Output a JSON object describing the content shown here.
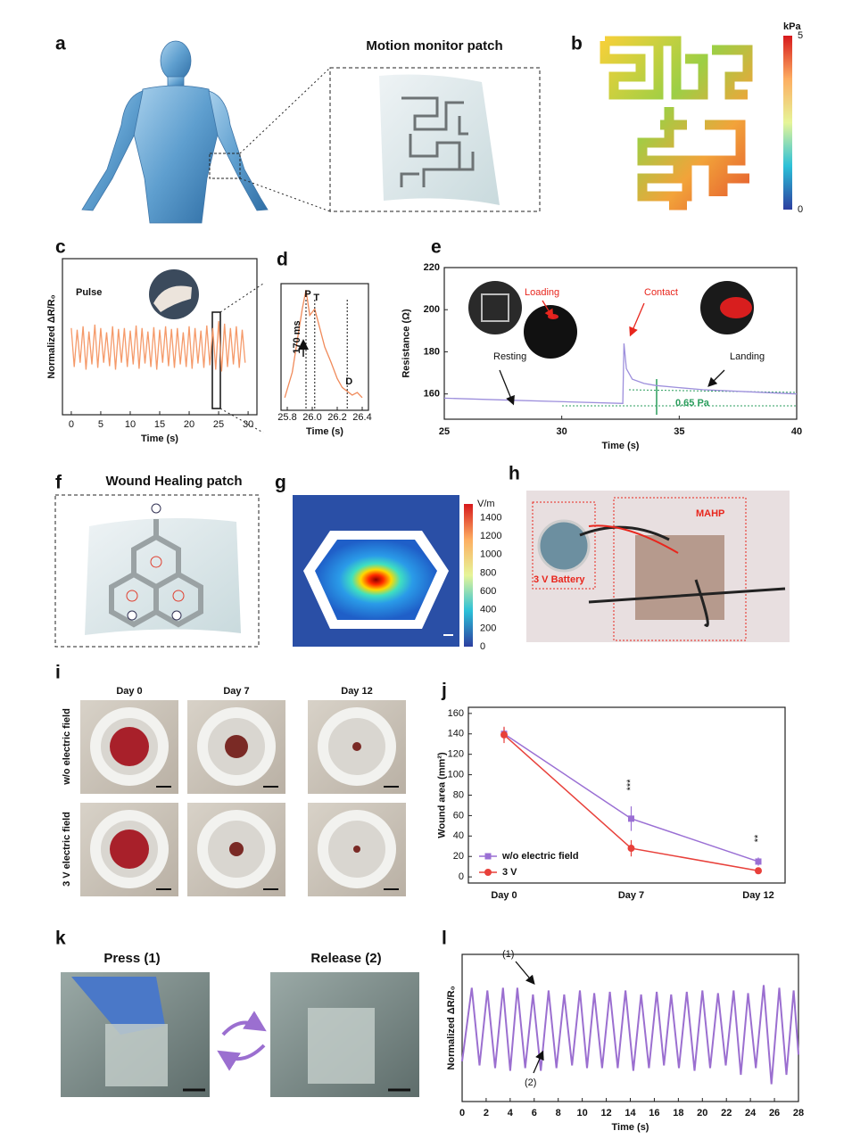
{
  "panel_labels": [
    "a",
    "b",
    "c",
    "d",
    "e",
    "f",
    "g",
    "h",
    "i",
    "j",
    "k",
    "l"
  ],
  "a": {
    "title": "Motion monitor patch"
  },
  "b": {
    "colorbar": {
      "unit": "kPa",
      "lim": [
        0,
        5
      ],
      "ticks": [
        0,
        5
      ]
    }
  },
  "f": {
    "title": "Wound Healing patch"
  },
  "g": {
    "colorbar": {
      "unit": "V/m",
      "lim": [
        0,
        1550
      ],
      "ticks": [
        0,
        200,
        400,
        600,
        800,
        1000,
        1200,
        1400
      ]
    }
  },
  "h": {
    "labels": [
      "MAHP",
      "3 V Battery"
    ]
  },
  "i": {
    "columns": [
      "Day 0",
      "Day 7",
      "Day 12"
    ],
    "rows": [
      "w/o electric field",
      "3 V electric field"
    ]
  },
  "k": {
    "labels": [
      "Press (1)",
      "Release (2)"
    ]
  },
  "chart_data": [
    {
      "type": "line",
      "panel": "c",
      "annotations": [
        "Pulse"
      ],
      "xlabel": "Time (s)",
      "ylabel": "Normalized ΔR/R₀",
      "xlim": [
        -1.5,
        31.5
      ],
      "xticks": [
        0,
        5,
        10,
        15,
        20,
        25,
        30
      ],
      "ylim": [
        -0.3,
        1.5
      ],
      "color": "#f59a6a",
      "x": [
        0,
        0.5,
        1,
        1.5,
        2,
        2.5,
        3,
        3.5,
        4,
        4.5,
        5,
        5.5,
        6,
        6.5,
        7,
        7.5,
        8,
        8.5,
        9,
        9.5,
        10,
        10.5,
        11,
        11.5,
        12,
        12.5,
        13,
        13.5,
        14,
        14.5,
        15,
        15.5,
        16,
        16.5,
        17,
        17.5,
        18,
        18.5,
        19,
        19.5,
        20,
        20.5,
        21,
        21.5,
        22,
        22.5,
        23,
        23.5,
        24,
        24.5,
        25,
        25.5,
        26,
        26.5,
        27,
        27.5,
        28,
        28.5,
        29,
        29.5
      ],
      "values": [
        0.7,
        0.25,
        0.68,
        0.3,
        0.72,
        0.22,
        0.66,
        0.28,
        0.74,
        0.24,
        0.7,
        0.3,
        0.65,
        0.26,
        0.72,
        0.22,
        0.69,
        0.3,
        0.7,
        0.25,
        0.67,
        0.28,
        0.73,
        0.23,
        0.7,
        0.29,
        0.66,
        0.25,
        0.71,
        0.22,
        0.68,
        0.3,
        0.72,
        0.26,
        0.69,
        0.24,
        0.7,
        0.28,
        0.65,
        0.25,
        0.72,
        0.23,
        0.7,
        0.29,
        0.67,
        0.24,
        0.73,
        0.27,
        0.7,
        0.22,
        0.78,
        0.2,
        0.75,
        0.25,
        0.7,
        0.28,
        0.72,
        0.24,
        0.68,
        0.3
      ]
    },
    {
      "type": "line",
      "panel": "d",
      "annotations": [
        "170 ms"
      ],
      "xlabel": "Time (s)",
      "xlim": [
        25.75,
        26.45
      ],
      "xticks": [
        25.8,
        {
          "value": 26,
          "label": "26.0"
        },
        26.2,
        26.4
      ],
      "ylim": [
        0,
        1
      ],
      "color": "#f08a5a",
      "markers": [
        {
          "label": "P",
          "x": 25.95
        },
        {
          "label": "T",
          "x": 26.02
        },
        {
          "label": "D",
          "x": 26.28
        }
      ],
      "x": [
        25.78,
        25.84,
        25.88,
        25.92,
        25.95,
        25.98,
        26.02,
        26.06,
        26.1,
        26.15,
        26.2,
        26.24,
        26.28,
        26.32,
        26.36,
        26.4
      ],
      "values": [
        0.1,
        0.3,
        0.55,
        0.8,
        0.95,
        0.75,
        0.8,
        0.65,
        0.5,
        0.38,
        0.25,
        0.18,
        0.15,
        0.12,
        0.14,
        0.1
      ]
    },
    {
      "type": "line",
      "panel": "e",
      "annotations": [
        "Resting",
        "Loading",
        "Contact",
        "Landing",
        "0.65 Pa"
      ],
      "xlabel": "Time (s)",
      "ylabel": "Resistance (Ω)",
      "xlim": [
        25,
        40
      ],
      "xticks": [
        25,
        30,
        35,
        40
      ],
      "ylim": [
        148,
        220
      ],
      "yticks": [
        160,
        180,
        200,
        220
      ],
      "color": "#9d8fdc",
      "x": [
        25,
        28,
        32.6,
        32.65,
        32.75,
        33,
        33.5,
        34,
        35,
        36,
        38,
        40
      ],
      "values": [
        158,
        157,
        155.5,
        184,
        172,
        167,
        165,
        164,
        163,
        162,
        161,
        160
      ]
    },
    {
      "type": "errorline",
      "panel": "j",
      "annotations": [
        "***",
        "**"
      ],
      "ylabel": "Wound area (mm²)",
      "categories": [
        "Day 0",
        "Day 7",
        "Day 12"
      ],
      "ylim": [
        -6,
        166
      ],
      "yticks": [
        0,
        20,
        40,
        60,
        80,
        100,
        120,
        140,
        160
      ],
      "legend": "lower left",
      "series": [
        {
          "name": "w/o electric field",
          "color": "#9a6fd4",
          "marker": "square",
          "values": [
            140,
            57,
            15
          ],
          "errors": [
            6,
            12,
            4
          ]
        },
        {
          "name": "3 V",
          "color": "#e8403a",
          "marker": "circle",
          "values": [
            139,
            28,
            6
          ],
          "errors": [
            8,
            8,
            2
          ]
        }
      ]
    },
    {
      "type": "line",
      "panel": "l",
      "annotations": [
        "(1)",
        "(2)"
      ],
      "xlabel": "Time (s)",
      "ylabel": "Normalized ΔR/R₀",
      "xlim": [
        0,
        28
      ],
      "xticks": [
        0,
        2,
        4,
        6,
        8,
        10,
        12,
        14,
        16,
        18,
        20,
        22,
        24,
        26,
        28
      ],
      "ylim": [
        -0.05,
        1.05
      ],
      "color": "#9b6fd0",
      "x": [
        0,
        0.8,
        1.45,
        2.1,
        2.75,
        3.4,
        4.0,
        4.6,
        5.25,
        5.9,
        6.55,
        7.2,
        7.85,
        8.5,
        9.15,
        9.8,
        10.4,
        11.0,
        11.65,
        12.3,
        12.95,
        13.6,
        14.25,
        14.9,
        15.55,
        16.2,
        16.8,
        17.4,
        18.05,
        18.7,
        19.35,
        20.0,
        20.65,
        21.3,
        21.95,
        22.6,
        23.2,
        23.8,
        24.45,
        25.1,
        25.75,
        26.4,
        27.0,
        27.6,
        28
      ],
      "values": [
        0.25,
        0.8,
        0.22,
        0.78,
        0.2,
        0.8,
        0.18,
        0.8,
        0.2,
        0.75,
        0.18,
        0.78,
        0.2,
        0.75,
        0.22,
        0.78,
        0.2,
        0.76,
        0.2,
        0.77,
        0.2,
        0.78,
        0.18,
        0.75,
        0.2,
        0.77,
        0.22,
        0.75,
        0.2,
        0.77,
        0.18,
        0.78,
        0.2,
        0.76,
        0.22,
        0.78,
        0.15,
        0.76,
        0.2,
        0.82,
        0.08,
        0.8,
        0.15,
        0.78,
        0.3
      ]
    }
  ]
}
